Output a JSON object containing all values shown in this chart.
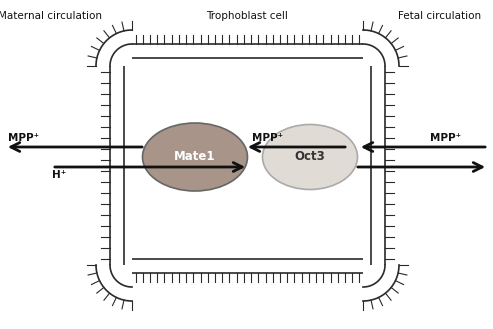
{
  "fig_width": 4.93,
  "fig_height": 3.29,
  "dpi": 100,
  "bg_color": "#ffffff",
  "title_maternal": "Maternal circulation",
  "title_trophoblast": "Trophoblast cell",
  "title_fetal": "Fetal circulation",
  "mate1_color": "#a89488",
  "oct3_color": "#e0dbd4",
  "mate1_label": "Mate1",
  "oct3_label": "Oct3",
  "mpp_label": "MPP⁺",
  "h_label": "H⁺",
  "membrane_color": "#2a2a2a",
  "arrow_color": "#111111",
  "text_color": "#111111"
}
